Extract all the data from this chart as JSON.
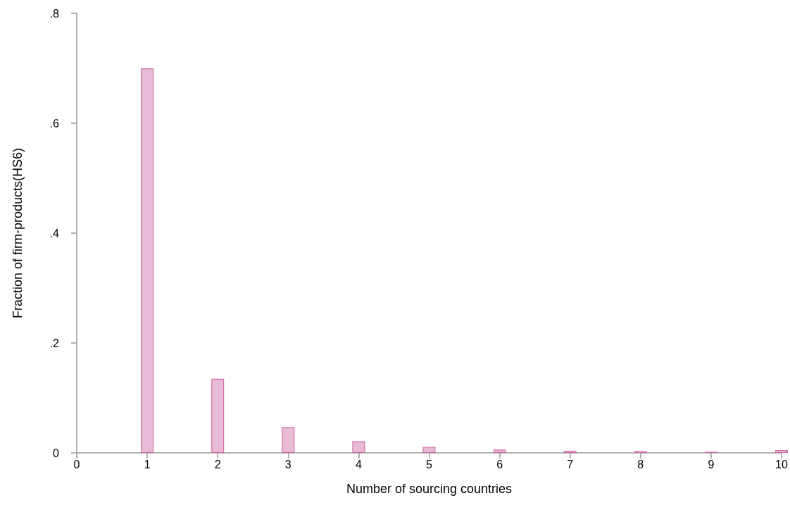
{
  "chart_data": {
    "type": "bar",
    "xlabel": "Number of sourcing countries",
    "ylabel": "Fraction of firm-products(HS6)",
    "x": [
      1,
      2,
      3,
      4,
      5,
      6,
      7,
      8,
      9,
      10
    ],
    "values": [
      0.7,
      0.135,
      0.047,
      0.021,
      0.011,
      0.006,
      0.004,
      0.003,
      0.002,
      0.005
    ],
    "color": "#e8bcd6",
    "xlim": [
      0,
      10
    ],
    "xticks": [
      0,
      1,
      2,
      3,
      4,
      5,
      6,
      7,
      8,
      9,
      10
    ],
    "ylim": [
      0,
      0.8
    ],
    "yticks": [
      {
        "value": 0,
        "label": "0"
      },
      {
        "value": 0.2,
        "label": ".2"
      },
      {
        "value": 0.4,
        "label": ".4"
      },
      {
        "value": 0.6,
        "label": ".6"
      },
      {
        "value": 0.8,
        "label": ".8"
      }
    ],
    "grid": false
  }
}
